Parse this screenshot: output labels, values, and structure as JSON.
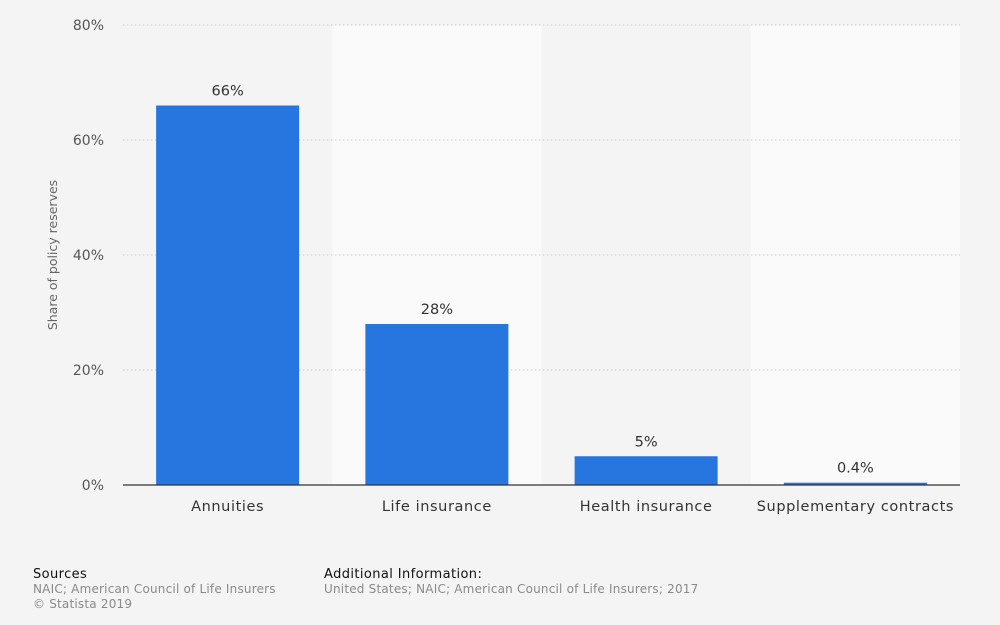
{
  "chart_data": {
    "type": "bar",
    "title": "",
    "xlabel": "",
    "ylabel": "Share of policy reserves",
    "categories": [
      "Annuities",
      "Life insurance",
      "Health insurance",
      "Supplementary contracts"
    ],
    "values": [
      66,
      28,
      5,
      0.4
    ],
    "value_labels": [
      "66%",
      "28%",
      "5%",
      "0.4%"
    ],
    "ylim": [
      0,
      80
    ],
    "yticks": [
      0,
      20,
      40,
      60,
      80
    ],
    "ytick_labels": [
      "0%",
      "20%",
      "40%",
      "60%",
      "80%"
    ],
    "grid": true,
    "legend": "none",
    "bar_color": "#2775de"
  },
  "footer": {
    "sources_heading": "Sources",
    "sources_text": "NAIC; American Council of Life Insurers",
    "copyright": "© Statista 2019",
    "additional_heading": "Additional Information:",
    "additional_text": "United States; NAIC; American Council of Life Insurers; 2017"
  }
}
